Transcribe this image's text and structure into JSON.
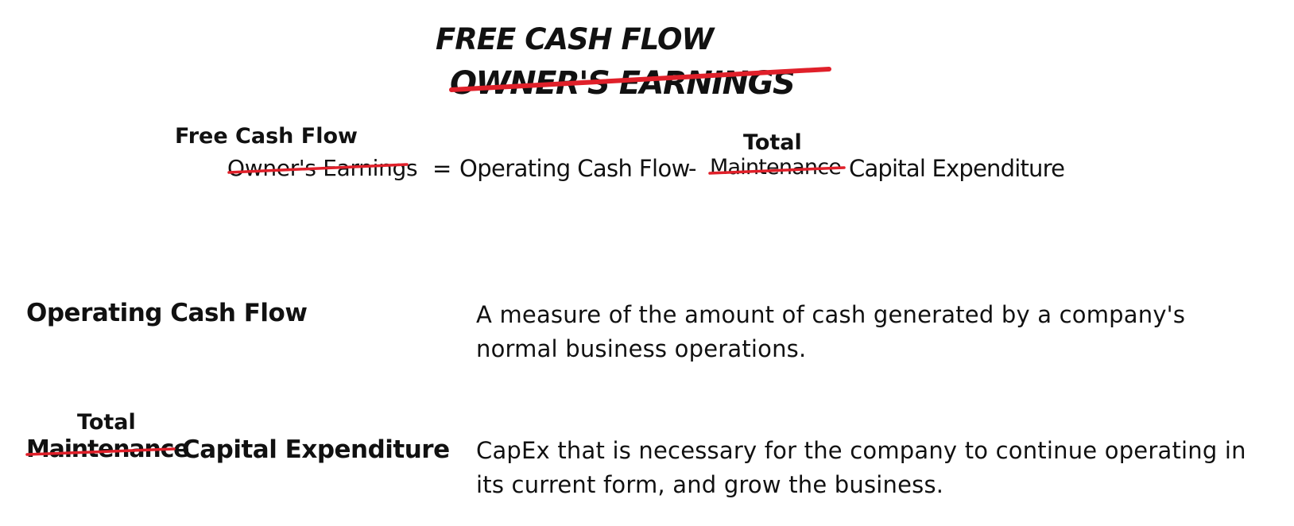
{
  "title": {
    "replacement": "FREE CASH FLOW",
    "struck": "OWNER'S EARNINGS"
  },
  "formula": {
    "lhs_replacement": "Free Cash Flow",
    "lhs_struck": "Owner's Earnings",
    "equals": "=",
    "operating_cash_flow": "Operating Cash Flow",
    "minus": "-",
    "capex_replacement": "Total",
    "capex_struck": "Maintenance",
    "capex_rest": "Capital Expenditure"
  },
  "definitions": [
    {
      "term": "Operating Cash Flow",
      "description": "A measure of the amount of cash generated by a company's normal business operations."
    },
    {
      "term_replacement": "Total",
      "term_struck": "Maintenance",
      "term_rest": "Capital Expenditure",
      "description": "CapEx that is necessary for the company to continue operating in its current form, and grow the business."
    }
  ],
  "colors": {
    "text": "#111111",
    "strike": "#e0202a",
    "background": "#ffffff"
  }
}
